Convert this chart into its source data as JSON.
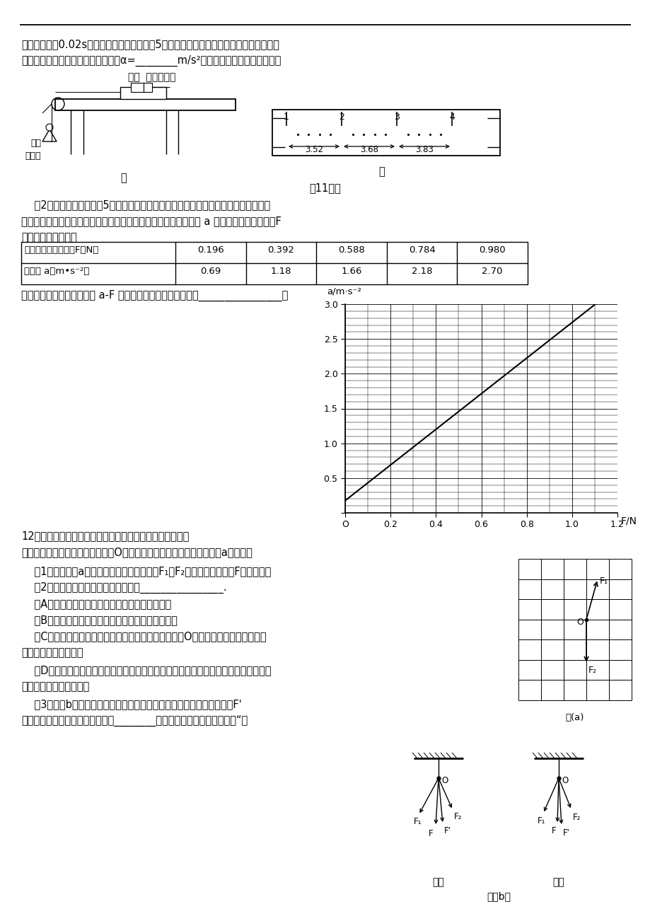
{
  "page_bg": "#ffffff",
  "para1_line1": "的时间间隔为0.02s。从比较清晰的点起，每5个点取一个计数点，用毫米刻度尺测出相邻",
  "para1_line2": "计数点之间的距离。该小车的加速度α=________m/s²。（结果保留两位有效数字）",
  "label_car_timer": "小车  打点计时器",
  "label_zima": "硅码",
  "label_mabi": "硅码盘",
  "label_jia": "甲",
  "label_yi": "乙",
  "ruler_d1": "3.52",
  "ruler_d2": "3.68",
  "ruler_d3": "3.83",
  "caption11": "第11题图",
  "para2_line1": "    （2）平衡摩擦力后，将5个相同的硅码都放在小车上。挂上硅码盘，然后每次从小车",
  "para2_line2": "上取一个硅码添加到硅码盘中，测量小车的加速度。小车的加速度 a 与硅码盘中硅码总重力F",
  "para2_line3": "的实验数据如下表：",
  "tbl_h1": "硅码盘中硅码总重力F（N）",
  "tbl_h2": "加速度 a（m•s⁻²）",
  "tbl_f": [
    "0.196",
    "0.392",
    "0.588",
    "0.784",
    "0.980"
  ],
  "tbl_a": [
    "0.69",
    "1.18",
    "1.66",
    "2.18",
    "2.70"
  ],
  "para3": "根据提供的试验数据作出的 a-F 图线不通过原点，主要原因是________________。",
  "graph_Fvals": [
    0.196,
    0.392,
    0.588,
    0.784,
    0.98
  ],
  "graph_avals": [
    0.69,
    1.18,
    1.66,
    2.18,
    2.7
  ],
  "para12_1": "12、李明同学在做《互成角度的两个力的合成》实验时，利",
  "para12_2": "用坐标纸记下了橡皮筋的结点位置O点以及两只弹簧秤拉力的大小如图（a）所示，",
  "q1": "    （1）试在图（a）中作出无实验误差情况下F₁和F₂的合力图示，并用F表示此力。",
  "q2": "    （2）有关此实验，下列叙述正确的是________________.",
  "qA": "    （A）两弹簧秤的拉力可以同时比橡皮筋的拉力大",
  "qB": "    （B）橡皮筋的拉力是合力，两弹簧秤的拉力是分力",
  "qC1": "    （C）两次拉橡皮筋时，需将橡皮筋结点拉到同一位置O。这样做的目的是保证两次",
  "qC2": "弹簧秤拉力的效果相同",
  "qD1": "    （D）若只增大某一只弹簧秤的拉力大小而要保证橡皮筋结点位置不变，只需调整另一",
  "qD2": "只弹簧秤拉力的大小即可",
  "q3_1": "    （3）图（b）所示是李明和张华两位同学在做以上实验时得到的结果，F'",
  "q3_2": "是用一只弹簧秤拉时的图示。其中________的实验比较符合实验事实？（“李",
  "label_zhanghua": "张华",
  "label_liming": "李明",
  "label_figb": "图（b）",
  "label_figa": "图(a)"
}
